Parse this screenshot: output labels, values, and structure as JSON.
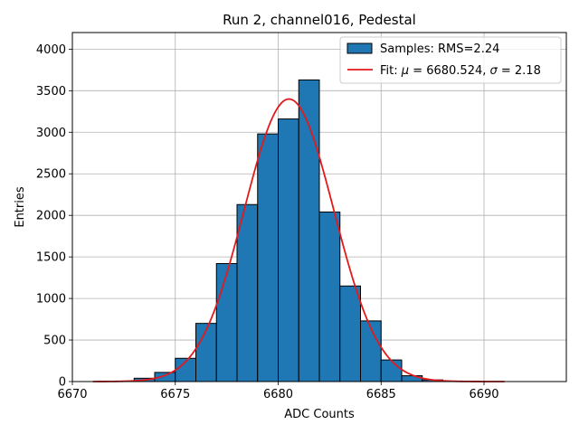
{
  "chart_data": {
    "type": "bar",
    "title": "Run 2, channel016, Pedestal",
    "xlabel": "ADC Counts",
    "ylabel": "Entries",
    "xlim": [
      6670,
      6694
    ],
    "ylim": [
      0,
      4200
    ],
    "xticks": [
      6670,
      6675,
      6680,
      6685,
      6690
    ],
    "yticks": [
      0,
      500,
      1000,
      1500,
      2000,
      2500,
      3000,
      3500,
      4000
    ],
    "grid": true,
    "legend_position": "top-right",
    "bin_width": 1,
    "bins": [
      {
        "x0": 6673,
        "count": 40
      },
      {
        "x0": 6674,
        "count": 110
      },
      {
        "x0": 6675,
        "count": 280
      },
      {
        "x0": 6676,
        "count": 700
      },
      {
        "x0": 6677,
        "count": 1420
      },
      {
        "x0": 6678,
        "count": 2130
      },
      {
        "x0": 6679,
        "count": 2980
      },
      {
        "x0": 6680,
        "count": 3160
      },
      {
        "x0": 6681,
        "count": 3630
      },
      {
        "x0": 6682,
        "count": 2040
      },
      {
        "x0": 6683,
        "count": 1150
      },
      {
        "x0": 6684,
        "count": 730
      },
      {
        "x0": 6685,
        "count": 260
      },
      {
        "x0": 6686,
        "count": 70
      },
      {
        "x0": 6687,
        "count": 20
      }
    ],
    "fit": {
      "type": "gaussian",
      "mu": 6680.524,
      "sigma": 2.18,
      "amplitude": 3400,
      "x_range": [
        6671,
        6691
      ]
    },
    "series": [
      {
        "name": "Samples: RMS=2.24",
        "kind": "histogram",
        "color": "#1f77b4"
      },
      {
        "name": "Fit: μ = 6680.524, σ = 2.18",
        "kind": "line",
        "color": "#e31a1c"
      }
    ]
  },
  "legend": {
    "samples_label": "Samples: RMS=2.24",
    "fit_label_prefix": "Fit: ",
    "fit_mu_symbol": "μ",
    "fit_mu_text": " = 6680.524, ",
    "fit_sigma_symbol": "σ",
    "fit_sigma_text": " = 2.18"
  }
}
